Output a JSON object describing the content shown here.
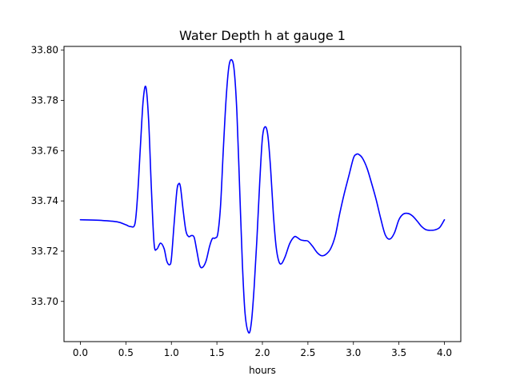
{
  "chart_data": {
    "type": "line",
    "title": "Water Depth h at gauge 1",
    "xlabel": "hours",
    "ylabel": "",
    "xlim": [
      -0.18,
      4.18
    ],
    "ylim": [
      33.684,
      33.8015
    ],
    "grid": false,
    "legend": "none",
    "x_ticks": [
      0.0,
      0.5,
      1.0,
      1.5,
      2.0,
      2.5,
      3.0,
      3.5,
      4.0
    ],
    "x_tick_labels": [
      "0.0",
      "0.5",
      "1.0",
      "1.5",
      "2.0",
      "2.5",
      "3.0",
      "3.5",
      "4.0"
    ],
    "y_ticks": [
      33.7,
      33.72,
      33.74,
      33.76,
      33.78,
      33.8
    ],
    "y_tick_labels": [
      "33.70",
      "33.72",
      "33.74",
      "33.76",
      "33.78",
      "33.80"
    ],
    "series": [
      {
        "color": "#0000ff",
        "x": [
          0.0,
          0.2,
          0.4,
          0.5,
          0.55,
          0.6,
          0.63,
          0.66,
          0.69,
          0.72,
          0.75,
          0.78,
          0.81,
          0.84,
          0.88,
          0.92,
          0.95,
          0.98,
          1.0,
          1.03,
          1.06,
          1.08,
          1.1,
          1.13,
          1.16,
          1.19,
          1.22,
          1.25,
          1.28,
          1.31,
          1.34,
          1.38,
          1.42,
          1.45,
          1.48,
          1.51,
          1.54,
          1.57,
          1.6,
          1.63,
          1.66,
          1.69,
          1.72,
          1.75,
          1.78,
          1.81,
          1.85,
          1.88,
          1.91,
          1.94,
          1.97,
          2.0,
          2.03,
          2.06,
          2.09,
          2.12,
          2.15,
          2.18,
          2.21,
          2.25,
          2.3,
          2.35,
          2.38,
          2.42,
          2.46,
          2.5,
          2.55,
          2.6,
          2.65,
          2.7,
          2.75,
          2.8,
          2.85,
          2.9,
          2.95,
          3.0,
          3.03,
          3.06,
          3.1,
          3.15,
          3.2,
          3.25,
          3.3,
          3.35,
          3.4,
          3.45,
          3.5,
          3.55,
          3.6,
          3.65,
          3.7,
          3.75,
          3.8,
          3.85,
          3.9,
          3.95,
          4.0
        ],
        "y": [
          33.7325,
          33.7323,
          33.7317,
          33.7305,
          33.7298,
          33.731,
          33.743,
          33.762,
          33.78,
          33.7853,
          33.772,
          33.745,
          33.723,
          33.7208,
          33.7232,
          33.721,
          33.716,
          33.7146,
          33.717,
          33.731,
          33.744,
          33.7468,
          33.7455,
          33.736,
          33.728,
          33.7258,
          33.7262,
          33.7255,
          33.72,
          33.7145,
          33.7135,
          33.716,
          33.722,
          33.725,
          33.7252,
          33.727,
          33.738,
          33.76,
          33.78,
          33.793,
          33.7962,
          33.792,
          33.775,
          33.745,
          33.715,
          33.695,
          33.6875,
          33.692,
          33.706,
          33.725,
          33.747,
          33.765,
          33.7695,
          33.766,
          33.753,
          33.735,
          33.722,
          33.716,
          33.715,
          33.7178,
          33.723,
          33.7257,
          33.7255,
          33.7245,
          33.7242,
          33.724,
          33.722,
          33.7195,
          33.7182,
          33.7188,
          33.721,
          33.726,
          33.735,
          33.743,
          33.75,
          33.757,
          33.7585,
          33.7585,
          33.757,
          33.753,
          33.747,
          33.7405,
          33.733,
          33.7265,
          33.7248,
          33.7272,
          33.7325,
          33.7348,
          33.735,
          33.734,
          33.732,
          33.7298,
          33.7285,
          33.7283,
          33.7285,
          33.7295,
          33.7325
        ]
      }
    ]
  }
}
